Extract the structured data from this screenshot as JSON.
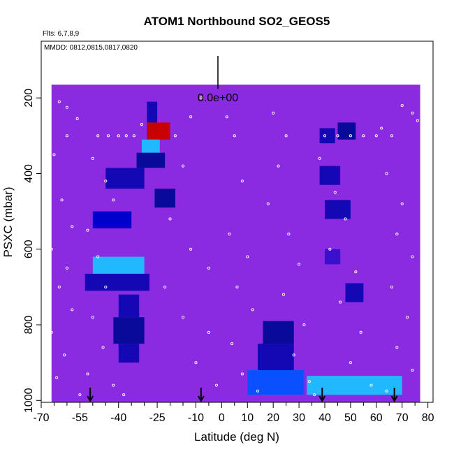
{
  "chart_data": {
    "type": "heatmap",
    "title": "ATOM1 Northbound SO2_GEOS5",
    "subtitle_flights": "Flts: 6,7,8,9",
    "subtitle_dates": "MMDD: 0812,0815,0817,0820",
    "xlabel": "Latitude (deg N)",
    "ylabel": "PSXC (mbar)",
    "xlim": [
      -70,
      82
    ],
    "ylim": [
      1005,
      50
    ],
    "x_ticks_major": [
      -70,
      -55,
      -40,
      -25,
      -10,
      0,
      10,
      20,
      30,
      40,
      50,
      60,
      70,
      80
    ],
    "x_ticks_minor": [
      -65,
      -60,
      -50,
      -45,
      -35,
      -30,
      -20,
      -15,
      -5,
      5,
      15,
      25,
      35,
      45,
      55,
      65,
      75
    ],
    "y_ticks": [
      200,
      400,
      600,
      800,
      1000
    ],
    "scale_label": "0.0e+00",
    "field_extent": {
      "lat_min": -66,
      "lat_max": 77,
      "p_top": 165,
      "p_bottom": 1005
    },
    "background_color": "#8a2be2",
    "colormap": [
      "#8a2be2",
      "#6a1fe0",
      "#3b10cc",
      "#1408b4",
      "#0a0a9a",
      "#0000cc",
      "#0a50ff",
      "#22b8ff",
      "#8ad8ff",
      "#ffd400",
      "#ff5a00",
      "#c80000"
    ],
    "cells": [
      {
        "lat": [
          -29,
          -25
        ],
        "p": [
          210,
          265
        ],
        "v": 3
      },
      {
        "lat": [
          -29,
          -20
        ],
        "p": [
          265,
          310
        ],
        "v": 11
      },
      {
        "lat": [
          -31,
          -24
        ],
        "p": [
          310,
          345
        ],
        "v": 7
      },
      {
        "lat": [
          -33,
          -22
        ],
        "p": [
          345,
          385
        ],
        "v": 4
      },
      {
        "lat": [
          -45,
          -30
        ],
        "p": [
          385,
          440
        ],
        "v": 3
      },
      {
        "lat": [
          -26,
          -18
        ],
        "p": [
          440,
          490
        ],
        "v": 4
      },
      {
        "lat": [
          -50,
          -35
        ],
        "p": [
          500,
          545
        ],
        "v": 5
      },
      {
        "lat": [
          -50,
          -30
        ],
        "p": [
          620,
          665
        ],
        "v": 7
      },
      {
        "lat": [
          -53,
          -28
        ],
        "p": [
          665,
          710
        ],
        "v": 3
      },
      {
        "lat": [
          -40,
          -32
        ],
        "p": [
          720,
          780
        ],
        "v": 3
      },
      {
        "lat": [
          -42,
          -30
        ],
        "p": [
          780,
          850
        ],
        "v": 4
      },
      {
        "lat": [
          -40,
          -32
        ],
        "p": [
          850,
          900
        ],
        "v": 3
      },
      {
        "lat": [
          16,
          28
        ],
        "p": [
          790,
          850
        ],
        "v": 4
      },
      {
        "lat": [
          14,
          28
        ],
        "p": [
          850,
          920
        ],
        "v": 3
      },
      {
        "lat": [
          10,
          32
        ],
        "p": [
          920,
          985
        ],
        "v": 6
      },
      {
        "lat": [
          33,
          70
        ],
        "p": [
          935,
          985
        ],
        "v": 7
      },
      {
        "lat": [
          38,
          44
        ],
        "p": [
          280,
          320
        ],
        "v": 3
      },
      {
        "lat": [
          45,
          52
        ],
        "p": [
          265,
          310
        ],
        "v": 4
      },
      {
        "lat": [
          38,
          46
        ],
        "p": [
          380,
          430
        ],
        "v": 3
      },
      {
        "lat": [
          40,
          50
        ],
        "p": [
          470,
          520
        ],
        "v": 3
      },
      {
        "lat": [
          40,
          46
        ],
        "p": [
          600,
          640
        ],
        "v": 2
      },
      {
        "lat": [
          48,
          55
        ],
        "p": [
          690,
          740
        ],
        "v": 3
      }
    ],
    "flight_track_points": [
      {
        "lat": -68,
        "p": 195
      },
      {
        "lat": -63,
        "p": 210
      },
      {
        "lat": -60,
        "p": 225
      },
      {
        "lat": -56,
        "p": 255
      },
      {
        "lat": -60,
        "p": 300
      },
      {
        "lat": -65,
        "p": 350
      },
      {
        "lat": -67,
        "p": 420
      },
      {
        "lat": -62,
        "p": 470
      },
      {
        "lat": -58,
        "p": 540
      },
      {
        "lat": -66,
        "p": 600
      },
      {
        "lat": -60,
        "p": 650
      },
      {
        "lat": -63,
        "p": 700
      },
      {
        "lat": -58,
        "p": 760
      },
      {
        "lat": -66,
        "p": 820
      },
      {
        "lat": -61,
        "p": 880
      },
      {
        "lat": -64,
        "p": 940
      },
      {
        "lat": -55,
        "p": 985
      },
      {
        "lat": -48,
        "p": 300
      },
      {
        "lat": -44,
        "p": 300
      },
      {
        "lat": -40,
        "p": 300
      },
      {
        "lat": -37,
        "p": 300
      },
      {
        "lat": -34,
        "p": 300
      },
      {
        "lat": -50,
        "p": 360
      },
      {
        "lat": -45,
        "p": 420
      },
      {
        "lat": -42,
        "p": 470
      },
      {
        "lat": -52,
        "p": 550
      },
      {
        "lat": -48,
        "p": 620
      },
      {
        "lat": -45,
        "p": 700
      },
      {
        "lat": -50,
        "p": 780
      },
      {
        "lat": -46,
        "p": 860
      },
      {
        "lat": -52,
        "p": 930
      },
      {
        "lat": -42,
        "p": 960
      },
      {
        "lat": -38,
        "p": 985
      },
      {
        "lat": -31,
        "p": 270
      },
      {
        "lat": -18,
        "p": 300
      },
      {
        "lat": -12,
        "p": 250
      },
      {
        "lat": -8,
        "p": 200
      },
      {
        "lat": -15,
        "p": 380
      },
      {
        "lat": -20,
        "p": 520
      },
      {
        "lat": -12,
        "p": 600
      },
      {
        "lat": -5,
        "p": 650
      },
      {
        "lat": -22,
        "p": 700
      },
      {
        "lat": -15,
        "p": 780
      },
      {
        "lat": -5,
        "p": 820
      },
      {
        "lat": -10,
        "p": 900
      },
      {
        "lat": -2,
        "p": 960
      },
      {
        "lat": 2,
        "p": 250
      },
      {
        "lat": 5,
        "p": 300
      },
      {
        "lat": 8,
        "p": 420
      },
      {
        "lat": 3,
        "p": 560
      },
      {
        "lat": 10,
        "p": 620
      },
      {
        "lat": 6,
        "p": 700
      },
      {
        "lat": 12,
        "p": 760
      },
      {
        "lat": 4,
        "p": 850
      },
      {
        "lat": 8,
        "p": 930
      },
      {
        "lat": 14,
        "p": 975
      },
      {
        "lat": 20,
        "p": 240
      },
      {
        "lat": 25,
        "p": 300
      },
      {
        "lat": 22,
        "p": 380
      },
      {
        "lat": 18,
        "p": 480
      },
      {
        "lat": 26,
        "p": 560
      },
      {
        "lat": 30,
        "p": 640
      },
      {
        "lat": 24,
        "p": 720
      },
      {
        "lat": 32,
        "p": 800
      },
      {
        "lat": 28,
        "p": 880
      },
      {
        "lat": 34,
        "p": 950
      },
      {
        "lat": 36,
        "p": 985
      },
      {
        "lat": 40,
        "p": 300
      },
      {
        "lat": 45,
        "p": 300
      },
      {
        "lat": 50,
        "p": 300
      },
      {
        "lat": 55,
        "p": 300
      },
      {
        "lat": 60,
        "p": 300
      },
      {
        "lat": 38,
        "p": 360
      },
      {
        "lat": 44,
        "p": 450
      },
      {
        "lat": 48,
        "p": 520
      },
      {
        "lat": 42,
        "p": 600
      },
      {
        "lat": 52,
        "p": 660
      },
      {
        "lat": 46,
        "p": 740
      },
      {
        "lat": 54,
        "p": 820
      },
      {
        "lat": 50,
        "p": 900
      },
      {
        "lat": 58,
        "p": 960
      },
      {
        "lat": 62,
        "p": 280
      },
      {
        "lat": 66,
        "p": 300
      },
      {
        "lat": 70,
        "p": 220
      },
      {
        "lat": 74,
        "p": 240
      },
      {
        "lat": 76,
        "p": 260
      },
      {
        "lat": 64,
        "p": 400
      },
      {
        "lat": 70,
        "p": 480
      },
      {
        "lat": 68,
        "p": 560
      },
      {
        "lat": 74,
        "p": 620
      },
      {
        "lat": 66,
        "p": 700
      },
      {
        "lat": 72,
        "p": 780
      },
      {
        "lat": 68,
        "p": 860
      },
      {
        "lat": 74,
        "p": 920
      },
      {
        "lat": 64,
        "p": 975
      }
    ],
    "arrow_markers_lat": [
      -51,
      -8,
      39,
      67
    ]
  }
}
